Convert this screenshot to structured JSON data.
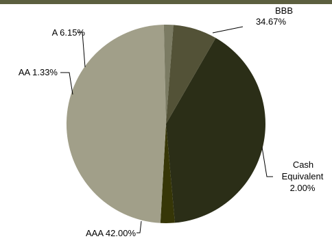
{
  "theme": {
    "top_band_color": "#5c5f3f"
  },
  "chart_data": {
    "type": "pie",
    "title": "",
    "slices": [
      {
        "label": "BBB",
        "value": 34.67,
        "value_label": "34.67%",
        "color": "#2b2e17"
      },
      {
        "label": "Cash Equivalent",
        "value": 2.0,
        "value_label": "2.00%",
        "color": "#363607"
      },
      {
        "label": "AAA",
        "value": 42.0,
        "value_label": "42.00%",
        "color": "#a19f89"
      },
      {
        "label": "AA",
        "value": 1.33,
        "value_label": "1.33%",
        "color": "#7b7b63"
      },
      {
        "label": "A",
        "value": 6.15,
        "value_label": "6.15%",
        "color": "#535237"
      }
    ],
    "legend": "none",
    "label_style": "leader-lines"
  }
}
